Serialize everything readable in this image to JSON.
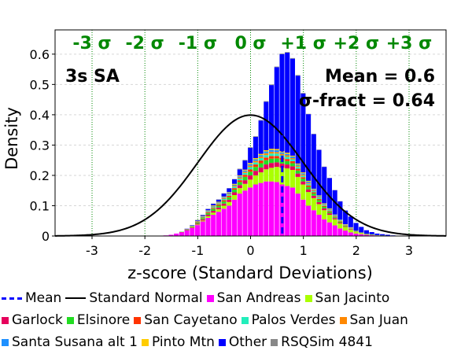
{
  "chart_data": {
    "type": "bar",
    "title": "",
    "xlabel": "z-score (Standard Deviations)",
    "ylabel": "Density",
    "xlim": [
      -3.7,
      3.7
    ],
    "ylim": [
      0,
      0.68
    ],
    "xticks": [
      -3,
      -2,
      -1,
      0,
      1,
      2,
      3
    ],
    "xtick_labels": [
      "-3",
      "-2",
      "-1",
      "0",
      "1",
      "2",
      "3"
    ],
    "yticks": [
      0,
      0.1,
      0.2,
      0.3,
      0.4,
      0.5,
      0.6
    ],
    "ytick_labels": [
      "0",
      "0.1",
      "0.2",
      "0.3",
      "0.4",
      "0.5",
      "0.6"
    ],
    "grid": "horizontal dashed",
    "stacked": true,
    "bin_width": 0.1,
    "x": [
      -1.6,
      -1.5,
      -1.4,
      -1.3,
      -1.2,
      -1.1,
      -1.0,
      -0.9,
      -0.8,
      -0.7,
      -0.6,
      -0.5,
      -0.4,
      -0.3,
      -0.2,
      -0.1,
      0.0,
      0.1,
      0.2,
      0.3,
      0.4,
      0.5,
      0.6,
      0.7,
      0.8,
      0.9,
      1.0,
      1.1,
      1.2,
      1.3,
      1.4,
      1.5,
      1.6,
      1.7,
      1.8,
      1.9,
      2.0,
      2.1,
      2.2,
      2.3,
      2.4,
      2.5,
      2.6,
      2.7,
      2.8,
      2.9
    ],
    "series": [
      {
        "name": "San Andreas",
        "color": "#ff00ff",
        "values": [
          0.002,
          0.004,
          0.008,
          0.012,
          0.018,
          0.026,
          0.036,
          0.048,
          0.06,
          0.07,
          0.08,
          0.09,
          0.1,
          0.12,
          0.14,
          0.15,
          0.16,
          0.17,
          0.175,
          0.18,
          0.18,
          0.178,
          0.17,
          0.165,
          0.16,
          0.14,
          0.12,
          0.1,
          0.085,
          0.07,
          0.055,
          0.045,
          0.035,
          0.025,
          0.018,
          0.012,
          0.008,
          0.006,
          0.004,
          0.003,
          0.002,
          0.001,
          0.001,
          0.0,
          0.0,
          0.0
        ]
      },
      {
        "name": "San Jacinto",
        "color": "#aaff00",
        "values": [
          0.0,
          0.0,
          0.0,
          0.0,
          0.0,
          0.001,
          0.002,
          0.003,
          0.005,
          0.007,
          0.008,
          0.01,
          0.012,
          0.015,
          0.018,
          0.022,
          0.026,
          0.03,
          0.035,
          0.04,
          0.045,
          0.05,
          0.055,
          0.058,
          0.058,
          0.055,
          0.05,
          0.045,
          0.04,
          0.035,
          0.03,
          0.025,
          0.02,
          0.016,
          0.012,
          0.009,
          0.006,
          0.004,
          0.003,
          0.002,
          0.001,
          0.001,
          0.0,
          0.0,
          0.0,
          0.0
        ]
      },
      {
        "name": "Garlock",
        "color": "#e6005c",
        "values": [
          0.0,
          0.0,
          0.0,
          0.001,
          0.002,
          0.002,
          0.003,
          0.004,
          0.005,
          0.006,
          0.006,
          0.007,
          0.008,
          0.009,
          0.01,
          0.012,
          0.014,
          0.015,
          0.016,
          0.016,
          0.016,
          0.015,
          0.014,
          0.013,
          0.012,
          0.011,
          0.01,
          0.009,
          0.008,
          0.007,
          0.006,
          0.005,
          0.004,
          0.003,
          0.002,
          0.002,
          0.001,
          0.001,
          0.0,
          0.0,
          0.0,
          0.0,
          0.0,
          0.0,
          0.0,
          0.0
        ]
      },
      {
        "name": "Elsinore",
        "color": "#22dd22",
        "values": [
          0.0,
          0.0,
          0.0,
          0.001,
          0.001,
          0.002,
          0.003,
          0.004,
          0.005,
          0.006,
          0.006,
          0.007,
          0.008,
          0.009,
          0.01,
          0.011,
          0.012,
          0.013,
          0.014,
          0.014,
          0.014,
          0.013,
          0.012,
          0.011,
          0.01,
          0.01,
          0.009,
          0.008,
          0.007,
          0.006,
          0.005,
          0.004,
          0.003,
          0.003,
          0.002,
          0.001,
          0.001,
          0.001,
          0.0,
          0.0,
          0.0,
          0.0,
          0.0,
          0.0,
          0.0,
          0.0
        ]
      },
      {
        "name": "San Cayetano",
        "color": "#ff3300",
        "values": [
          0.0,
          0.0,
          0.0,
          0.0,
          0.001,
          0.001,
          0.002,
          0.002,
          0.003,
          0.003,
          0.004,
          0.004,
          0.005,
          0.005,
          0.006,
          0.007,
          0.008,
          0.008,
          0.009,
          0.009,
          0.009,
          0.008,
          0.008,
          0.007,
          0.007,
          0.006,
          0.005,
          0.005,
          0.004,
          0.004,
          0.003,
          0.003,
          0.002,
          0.002,
          0.001,
          0.001,
          0.001,
          0.0,
          0.0,
          0.0,
          0.0,
          0.0,
          0.0,
          0.0,
          0.0,
          0.0
        ]
      },
      {
        "name": "Palos Verdes",
        "color": "#22eebb",
        "values": [
          0.0,
          0.0,
          0.0,
          0.0,
          0.001,
          0.001,
          0.001,
          0.002,
          0.002,
          0.003,
          0.003,
          0.004,
          0.004,
          0.005,
          0.005,
          0.006,
          0.007,
          0.007,
          0.008,
          0.008,
          0.008,
          0.008,
          0.007,
          0.007,
          0.006,
          0.006,
          0.005,
          0.005,
          0.004,
          0.004,
          0.003,
          0.003,
          0.002,
          0.002,
          0.001,
          0.001,
          0.001,
          0.0,
          0.0,
          0.0,
          0.0,
          0.0,
          0.0,
          0.0,
          0.0,
          0.0
        ]
      },
      {
        "name": "San Juan",
        "color": "#ff8800",
        "values": [
          0.0,
          0.0,
          0.0,
          0.0,
          0.0,
          0.001,
          0.001,
          0.001,
          0.002,
          0.002,
          0.002,
          0.003,
          0.003,
          0.003,
          0.004,
          0.004,
          0.005,
          0.005,
          0.005,
          0.006,
          0.006,
          0.005,
          0.005,
          0.005,
          0.004,
          0.004,
          0.004,
          0.003,
          0.003,
          0.003,
          0.002,
          0.002,
          0.002,
          0.001,
          0.001,
          0.001,
          0.0,
          0.0,
          0.0,
          0.0,
          0.0,
          0.0,
          0.0,
          0.0,
          0.0,
          0.0
        ]
      },
      {
        "name": "Santa Susana alt 1",
        "color": "#1e90ff",
        "values": [
          0.0,
          0.0,
          0.0,
          0.0,
          0.0,
          0.001,
          0.001,
          0.001,
          0.002,
          0.002,
          0.002,
          0.003,
          0.003,
          0.003,
          0.004,
          0.004,
          0.005,
          0.005,
          0.005,
          0.006,
          0.006,
          0.006,
          0.005,
          0.005,
          0.005,
          0.004,
          0.004,
          0.004,
          0.003,
          0.003,
          0.002,
          0.002,
          0.002,
          0.001,
          0.001,
          0.001,
          0.0,
          0.0,
          0.0,
          0.0,
          0.0,
          0.0,
          0.0,
          0.0,
          0.0,
          0.0
        ]
      },
      {
        "name": "Pinto Mtn",
        "color": "#ffcc00",
        "values": [
          0.0,
          0.0,
          0.0,
          0.0,
          0.0,
          0.0,
          0.001,
          0.001,
          0.001,
          0.002,
          0.002,
          0.002,
          0.002,
          0.003,
          0.003,
          0.003,
          0.004,
          0.004,
          0.004,
          0.004,
          0.004,
          0.004,
          0.004,
          0.004,
          0.003,
          0.003,
          0.003,
          0.003,
          0.002,
          0.002,
          0.002,
          0.002,
          0.001,
          0.001,
          0.001,
          0.001,
          0.0,
          0.0,
          0.0,
          0.0,
          0.0,
          0.0,
          0.0,
          0.0,
          0.0,
          0.0
        ]
      },
      {
        "name": "Other",
        "color": "#0000ff",
        "values": [
          0.0,
          0.0,
          0.0,
          0.0,
          0.001,
          0.001,
          0.002,
          0.003,
          0.004,
          0.005,
          0.007,
          0.01,
          0.012,
          0.015,
          0.02,
          0.03,
          0.05,
          0.07,
          0.11,
          0.16,
          0.21,
          0.27,
          0.32,
          0.33,
          0.32,
          0.29,
          0.26,
          0.22,
          0.18,
          0.15,
          0.12,
          0.1,
          0.08,
          0.06,
          0.045,
          0.035,
          0.025,
          0.018,
          0.012,
          0.008,
          0.005,
          0.004,
          0.003,
          0.002,
          0.001,
          0.001
        ]
      },
      {
        "name": "RSQSim 4841",
        "color": "#888888",
        "values": [
          0.0,
          0.0,
          0.0,
          0.0,
          0.0,
          0.0,
          0.001,
          0.001,
          0.001,
          0.001,
          0.001,
          0.001,
          0.001,
          0.001,
          0.002,
          0.002,
          0.002,
          0.002,
          0.002,
          0.002,
          0.002,
          0.002,
          0.002,
          0.002,
          0.002,
          0.002,
          0.002,
          0.001,
          0.001,
          0.001,
          0.001,
          0.001,
          0.001,
          0.001,
          0.0,
          0.0,
          0.0,
          0.0,
          0.0,
          0.0,
          0.0,
          0.0,
          0.0,
          0.0,
          0.0,
          0.0
        ]
      }
    ],
    "normal_curve": {
      "name": "Standard Normal",
      "mean": 0,
      "sd": 1,
      "color": "#000000"
    },
    "mean_line": {
      "name": "Mean",
      "value": 0.6,
      "color": "#0000ff",
      "style": "dashed"
    },
    "sigma_lines": [
      -3,
      -2,
      -1,
      0,
      1,
      2,
      3
    ],
    "sigma_labels": [
      "-3 σ",
      "-2 σ",
      "-1 σ",
      "0 σ",
      "+1 σ",
      "+2 σ",
      "+3 σ"
    ],
    "sigma_color": "#008800",
    "annotations": {
      "period": "3s SA",
      "mean_text": "Mean = 0.6",
      "sigma_fract_text": "σ-fract = 0.64"
    },
    "legend_placement": "bottom",
    "legend_rows": [
      [
        {
          "label": "Mean",
          "kind": "dashed-line",
          "color": "#0000ff"
        },
        {
          "label": "Standard Normal",
          "kind": "line",
          "color": "#000000"
        },
        {
          "label": "San Andreas",
          "kind": "box",
          "color": "#ff00ff"
        },
        {
          "label": "San Jacinto",
          "kind": "box",
          "color": "#aaff00"
        }
      ],
      [
        {
          "label": "Garlock",
          "kind": "box",
          "color": "#e6005c"
        },
        {
          "label": "Elsinore",
          "kind": "box",
          "color": "#22dd22"
        },
        {
          "label": "San Cayetano",
          "kind": "box",
          "color": "#ff3300"
        },
        {
          "label": "Palos Verdes",
          "kind": "box",
          "color": "#22eebb"
        },
        {
          "label": "San Juan",
          "kind": "box",
          "color": "#ff8800"
        }
      ],
      [
        {
          "label": "Santa Susana alt 1",
          "kind": "box",
          "color": "#1e90ff"
        },
        {
          "label": "Pinto Mtn",
          "kind": "box",
          "color": "#ffcc00"
        },
        {
          "label": "Other",
          "kind": "box",
          "color": "#0000ff"
        },
        {
          "label": "RSQSim 4841",
          "kind": "box",
          "color": "#888888"
        }
      ]
    ]
  }
}
